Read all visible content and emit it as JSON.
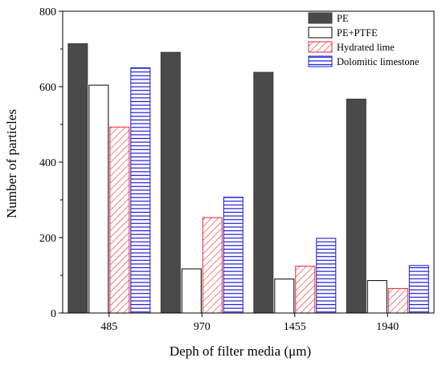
{
  "chart_data": {
    "type": "bar",
    "xlabel": "Deph of filter media (μm)",
    "ylabel": "Number of particles",
    "ylim": [
      0,
      800
    ],
    "yticks": [
      0,
      200,
      400,
      600,
      800
    ],
    "categories": [
      "485",
      "970",
      "1455",
      "1940"
    ],
    "grid": false,
    "legend_position": "top-right",
    "series": [
      {
        "name": "PE",
        "values": [
          714,
          691,
          638,
          567
        ],
        "fill": "#4a4a4a",
        "stroke": "#3a3a3a",
        "pattern": "solid"
      },
      {
        "name": "PE+PTFE",
        "values": [
          604,
          117,
          90,
          86
        ],
        "fill": "#ffffff",
        "stroke": "#000000",
        "pattern": "none"
      },
      {
        "name": "Hydrated lime",
        "values": [
          493,
          253,
          124,
          65
        ],
        "fill": "#ffffff",
        "stroke": "#e8262e",
        "pattern": "diagonal"
      },
      {
        "name": "Dolomitic limestone",
        "values": [
          650,
          307,
          198,
          126
        ],
        "fill": "#ffffff",
        "stroke": "#1a1ad6",
        "pattern": "horizontal"
      }
    ]
  }
}
